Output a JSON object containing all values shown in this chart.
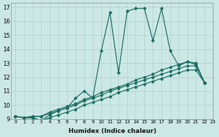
{
  "xlabel": "Humidex (Indice chaleur)",
  "bg_color": "#cce8e5",
  "grid_color": "#aacfcc",
  "line_color": "#1a6b60",
  "xlim": [
    -0.5,
    23
  ],
  "ylim": [
    9,
    17.3
  ],
  "xticks": [
    0,
    1,
    2,
    3,
    4,
    5,
    6,
    7,
    8,
    9,
    10,
    11,
    12,
    13,
    14,
    15,
    16,
    17,
    18,
    19,
    20,
    21,
    22,
    23
  ],
  "yticks": [
    9,
    10,
    11,
    12,
    13,
    14,
    15,
    16,
    17
  ],
  "series": [
    {
      "x": [
        0,
        1,
        2,
        3,
        4,
        5,
        6,
        7,
        8,
        9,
        10,
        11,
        12,
        13,
        14,
        15,
        16,
        17,
        18,
        19,
        20,
        21,
        22
      ],
      "y": [
        9.2,
        9.1,
        9.1,
        8.9,
        9.3,
        9.6,
        9.8,
        10.5,
        11.0,
        10.5,
        13.9,
        16.6,
        12.3,
        16.7,
        16.9,
        16.9,
        14.6,
        16.9,
        13.9,
        12.8,
        13.1,
        12.9,
        11.6
      ]
    },
    {
      "x": [
        0,
        1,
        2,
        3,
        4,
        5,
        6,
        7,
        8,
        9,
        10,
        11,
        12,
        13,
        14,
        15,
        16,
        17,
        18,
        19,
        20,
        21,
        22
      ],
      "y": [
        9.2,
        9.1,
        9.2,
        9.2,
        9.5,
        9.7,
        9.9,
        10.1,
        10.4,
        10.6,
        10.9,
        11.1,
        11.3,
        11.5,
        11.8,
        12.0,
        12.2,
        12.5,
        12.7,
        12.9,
        13.1,
        13.0,
        11.6
      ]
    },
    {
      "x": [
        0,
        1,
        2,
        3,
        4,
        5,
        6,
        7,
        8,
        9,
        10,
        11,
        12,
        13,
        14,
        15,
        16,
        17,
        18,
        19,
        20,
        21,
        22
      ],
      "y": [
        9.2,
        9.1,
        9.2,
        9.2,
        9.4,
        9.6,
        9.8,
        10.0,
        10.3,
        10.5,
        10.7,
        11.0,
        11.2,
        11.4,
        11.6,
        11.8,
        12.0,
        12.2,
        12.4,
        12.6,
        12.8,
        12.8,
        11.6
      ]
    },
    {
      "x": [
        0,
        1,
        2,
        3,
        4,
        5,
        6,
        7,
        8,
        9,
        10,
        11,
        12,
        13,
        14,
        15,
        16,
        17,
        18,
        19,
        20,
        21,
        22
      ],
      "y": [
        9.2,
        9.1,
        9.1,
        8.9,
        9.1,
        9.3,
        9.5,
        9.7,
        10.0,
        10.2,
        10.4,
        10.6,
        10.9,
        11.1,
        11.3,
        11.5,
        11.7,
        11.9,
        12.1,
        12.3,
        12.5,
        12.5,
        11.6
      ]
    }
  ],
  "marker": "D",
  "markersize": 2.5,
  "linewidth": 0.9
}
